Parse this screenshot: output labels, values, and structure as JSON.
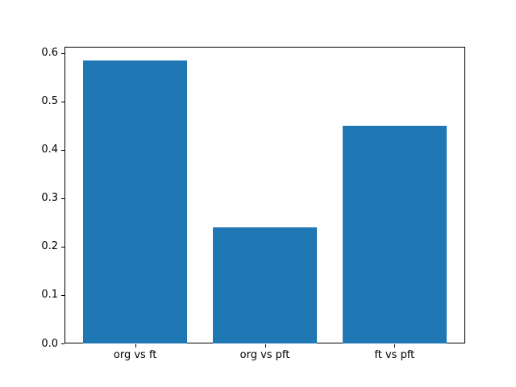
{
  "chart_data": {
    "type": "bar",
    "categories": [
      "org vs ft",
      "org vs pft",
      "ft vs pft"
    ],
    "values": [
      0.585,
      0.24,
      0.45
    ],
    "title": "",
    "xlabel": "",
    "ylabel": "",
    "ylim": [
      0,
      0.6133
    ],
    "yticks": [
      0.0,
      0.1,
      0.2,
      0.3,
      0.4,
      0.5,
      0.6
    ],
    "ytick_labels": [
      "0.0",
      "0.1",
      "0.2",
      "0.3",
      "0.4",
      "0.5",
      "0.6"
    ],
    "bar_color": "#1f77b4",
    "bar_width_fraction": 0.8,
    "grid": false,
    "legend": null,
    "background_color": "#ffffff",
    "spine_color": "#000000"
  }
}
